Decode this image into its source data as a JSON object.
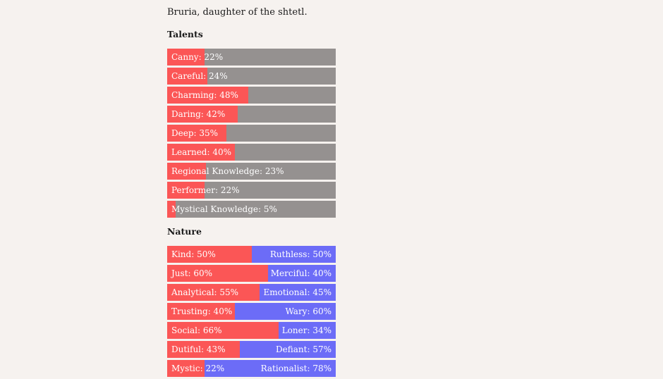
{
  "character": {
    "subtitle": "Bruria, daughter of the shtetl."
  },
  "talents": {
    "heading": "Talents",
    "items": [
      {
        "label": "Canny: 22%",
        "value": 22
      },
      {
        "label": "Careful: 24%",
        "value": 24
      },
      {
        "label": "Charming: 48%",
        "value": 48
      },
      {
        "label": "Daring: 42%",
        "value": 42
      },
      {
        "label": "Deep: 35%",
        "value": 35
      },
      {
        "label": "Learned: 40%",
        "value": 40
      },
      {
        "label": "Regional Knowledge: 23%",
        "value": 23
      },
      {
        "label": "Performer: 22%",
        "value": 22
      },
      {
        "label": "Mystical Knowledge: 5%",
        "value": 5
      }
    ]
  },
  "nature": {
    "heading": "Nature",
    "items": [
      {
        "left_label": "Kind: 50%",
        "right_label": "Ruthless: 50%",
        "value": 50
      },
      {
        "left_label": "Just: 60%",
        "right_label": "Merciful: 40%",
        "value": 60
      },
      {
        "left_label": "Analytical: 55%",
        "right_label": "Emotional: 45%",
        "value": 55
      },
      {
        "left_label": "Trusting: 40%",
        "right_label": "Wary: 60%",
        "value": 40
      },
      {
        "left_label": "Social: 66%",
        "right_label": "Loner: 34%",
        "value": 66
      },
      {
        "left_label": "Dutiful: 43%",
        "right_label": "Defiant: 57%",
        "value": 43
      },
      {
        "left_label": "Mystic: 22%",
        "right_label": "Rationalist: 78%",
        "value": 22
      }
    ]
  },
  "colors": {
    "background": "#f6f2ef",
    "fill_primary": "#fb5656",
    "talent_track": "#959190",
    "nature_track": "#6c6cf7"
  }
}
